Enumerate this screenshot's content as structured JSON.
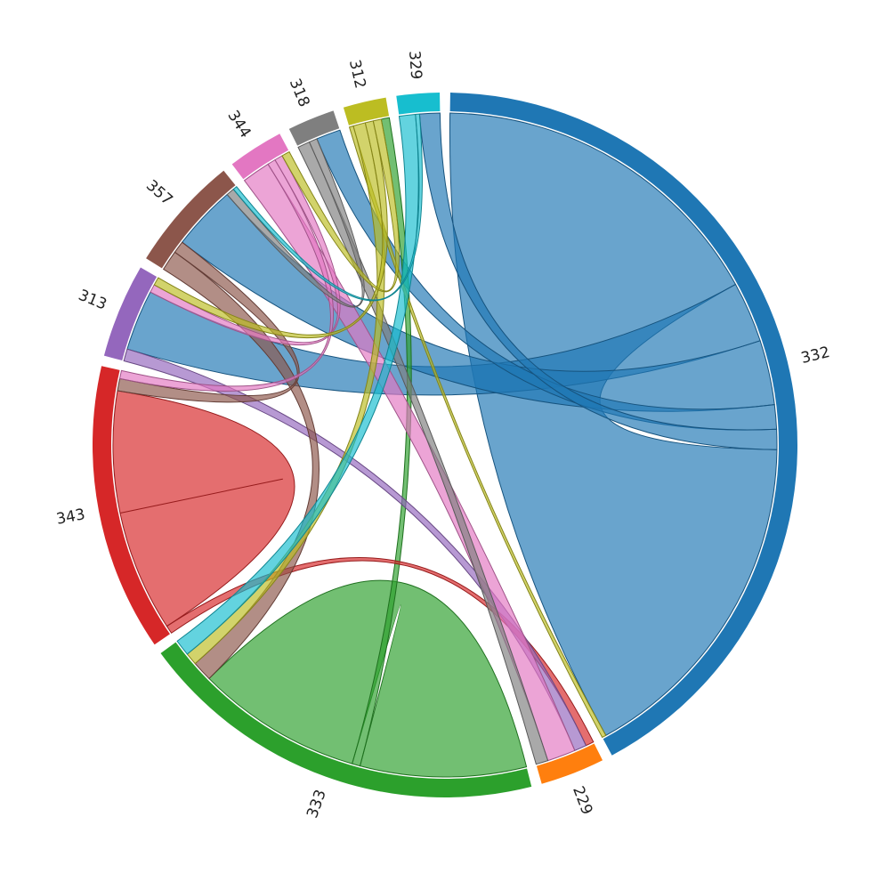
{
  "chart_data": {
    "type": "chord",
    "title": "",
    "groups": [
      {
        "label": "332",
        "color": "#1f77b4"
      },
      {
        "label": "229",
        "color": "#ff7f0e"
      },
      {
        "label": "333",
        "color": "#2ca02c"
      },
      {
        "label": "343",
        "color": "#d62728"
      },
      {
        "label": "313",
        "color": "#9467bd"
      },
      {
        "label": "357",
        "color": "#8c564b"
      },
      {
        "label": "344",
        "color": "#e377c2"
      },
      {
        "label": "318",
        "color": "#7f7f7f"
      },
      {
        "label": "312",
        "color": "#bcbd22"
      },
      {
        "label": "329",
        "color": "#17becf"
      }
    ],
    "matrix": [
      [
        170,
        0,
        0,
        0,
        30,
        32,
        0,
        12,
        0,
        10
      ],
      [
        0,
        0,
        0,
        0,
        0,
        0,
        0,
        0,
        0,
        0
      ],
      [
        0,
        0,
        82,
        0,
        0,
        0,
        0,
        0,
        4,
        0
      ],
      [
        0,
        4,
        0,
        60,
        0,
        0,
        0,
        0,
        0,
        0
      ],
      [
        0,
        6,
        0,
        0,
        0,
        0,
        0,
        0,
        0,
        0
      ],
      [
        0,
        0,
        10,
        6,
        0,
        0,
        0,
        0,
        0,
        0
      ],
      [
        0,
        14,
        0,
        4,
        4,
        0,
        0,
        0,
        0,
        0
      ],
      [
        0,
        6,
        0,
        0,
        0,
        4,
        0,
        0,
        0,
        0
      ],
      [
        2,
        0,
        6,
        0,
        4,
        0,
        4,
        0,
        0,
        0
      ],
      [
        0,
        0,
        8,
        0,
        0,
        2,
        0,
        0,
        0,
        0
      ]
    ]
  }
}
